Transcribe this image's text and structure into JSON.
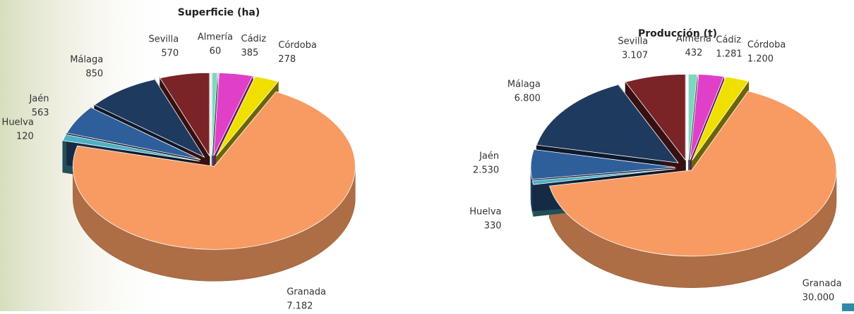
{
  "chart_data": [
    {
      "type": "pie3d",
      "title": "Superficie (ha)",
      "categories": [
        "Almería",
        "Cádiz",
        "Córdoba",
        "Granada",
        "Huelva",
        "Jaén",
        "Málaga",
        "Sevilla"
      ],
      "values": [
        60,
        385,
        278,
        7182,
        120,
        563,
        850,
        570
      ],
      "value_labels": [
        "60",
        "385",
        "278",
        "7.182",
        "120",
        "563",
        "850",
        "570"
      ],
      "colors": [
        "#7fd6c0",
        "#e040c8",
        "#f0e000",
        "#f79b63",
        "#4fb0c6",
        "#2e5f9a",
        "#1f3a5f",
        "#7a2428"
      ]
    },
    {
      "type": "pie3d",
      "title": "Producción (t)",
      "categories": [
        "Almería",
        "Cádiz",
        "Córdoba",
        "Granada",
        "Huelva",
        "Jaén",
        "Málaga",
        "Sevilla"
      ],
      "values": [
        432,
        1281,
        1200,
        30000,
        330,
        2530,
        6800,
        3107
      ],
      "value_labels": [
        "432",
        "1.281",
        "1.200",
        "30.000",
        "330",
        "2.530",
        "6.800",
        "3.107"
      ],
      "colors": [
        "#7fd6c0",
        "#e040c8",
        "#f0e000",
        "#f79b63",
        "#4fb0c6",
        "#2e5f9a",
        "#1f3a5f",
        "#7a2428"
      ]
    }
  ]
}
